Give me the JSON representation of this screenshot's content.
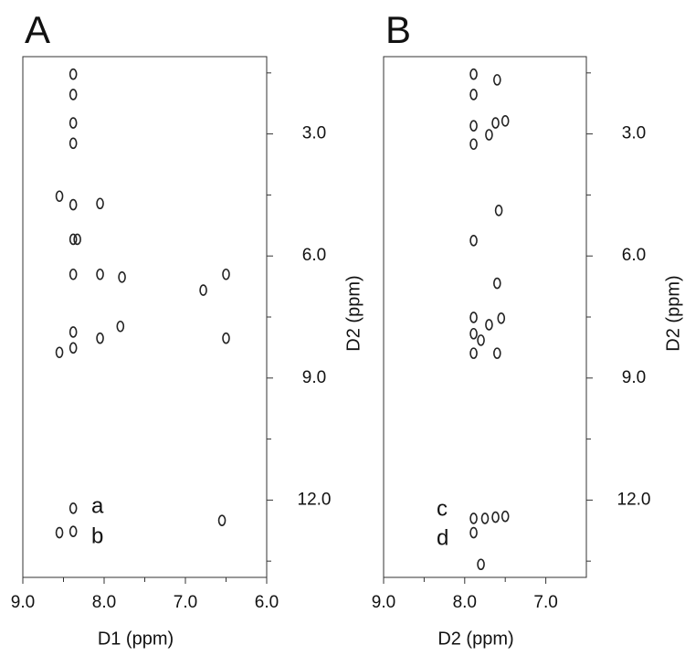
{
  "chart_data": [
    {
      "type": "scatter",
      "panel": "A",
      "xlabel": "D1 (ppm)",
      "ylabel": "D2 (ppm)",
      "color": "#222222",
      "xlim": [
        9.0,
        6.0
      ],
      "ylim": [
        13.9,
        1.1
      ],
      "xticks": [
        {
          "value": 9,
          "label": "9.0"
        },
        {
          "value": 8,
          "label": "8.0"
        },
        {
          "value": 7,
          "label": "7.0"
        },
        {
          "value": 6,
          "label": "6.0"
        }
      ],
      "minor_xticks": [
        8.5,
        7.5,
        6.5
      ],
      "yticks": [
        {
          "value": 3,
          "label": "3.0"
        },
        {
          "value": 6,
          "label": "6.0"
        },
        {
          "value": 9,
          "label": "9.0"
        },
        {
          "value": 12,
          "label": "12.0"
        }
      ],
      "minor_yticks": [
        1.5,
        4.5,
        7.5,
        10.5,
        13.5
      ],
      "annotations": [
        "a",
        "b"
      ],
      "x": [
        8.38,
        8.38,
        8.38,
        8.38,
        8.38,
        8.38,
        8.38,
        8.38,
        8.38,
        8.38,
        8.38,
        8.55,
        8.05,
        8.05,
        7.78,
        7.8,
        8.05,
        6.5,
        6.78,
        6.5,
        8.55,
        8.55,
        6.55,
        8.33
      ],
      "values": [
        1.53,
        2.03,
        2.73,
        3.23,
        4.74,
        5.59,
        6.45,
        7.87,
        8.26,
        12.2,
        12.77,
        4.53,
        4.71,
        6.45,
        6.52,
        7.73,
        8.02,
        6.45,
        6.84,
        8.02,
        8.37,
        12.8,
        12.5,
        5.59
      ]
    },
    {
      "type": "scatter",
      "panel": "B",
      "xlabel": "D2 (ppm)",
      "ylabel": "D2 (ppm)",
      "color": "#222222",
      "xlim": [
        9.0,
        6.5
      ],
      "ylim": [
        13.9,
        1.1
      ],
      "xticks": [
        {
          "value": 9,
          "label": "9.0"
        },
        {
          "value": 8,
          "label": "8.0"
        },
        {
          "value": 7,
          "label": "7.0"
        }
      ],
      "minor_xticks": [
        8.5,
        7.5
      ],
      "yticks": [
        {
          "value": 3,
          "label": "3.0"
        },
        {
          "value": 6,
          "label": "6.0"
        },
        {
          "value": 9,
          "label": "9.0"
        },
        {
          "value": 12,
          "label": "12.0"
        }
      ],
      "minor_yticks": [
        1.5,
        4.5,
        7.5,
        10.5,
        13.5
      ],
      "annotations": [
        "c",
        "d"
      ],
      "x": [
        7.89,
        7.89,
        7.89,
        7.89,
        7.89,
        7.89,
        7.89,
        7.89,
        7.89,
        7.89,
        7.6,
        7.62,
        7.7,
        7.5,
        7.58,
        7.6,
        7.7,
        7.55,
        7.6,
        7.75,
        7.62,
        7.5,
        7.8,
        7.8
      ],
      "values": [
        1.53,
        2.03,
        2.8,
        3.25,
        5.62,
        7.51,
        7.91,
        8.39,
        12.45,
        12.8,
        1.67,
        2.73,
        3.02,
        2.68,
        4.88,
        6.67,
        7.69,
        7.53,
        8.39,
        12.45,
        12.42,
        12.4,
        8.07,
        13.58
      ]
    }
  ]
}
